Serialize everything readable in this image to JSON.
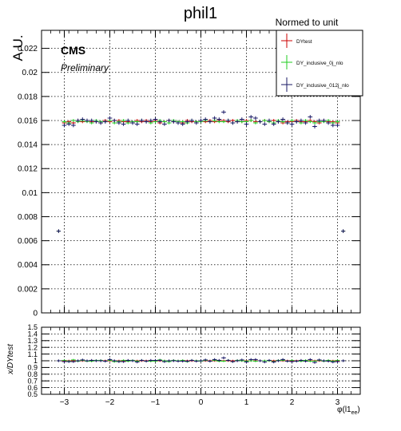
{
  "chart_data": {
    "type": "scatter",
    "title": "phil1",
    "header": "Normed to unit",
    "ylabel": "A.U.",
    "ratio_ylabel": "x/DYtest",
    "xlabel_main": "φ(l1",
    "xlabel_sub": "ee",
    "xlabel_close": ")",
    "cms_label": "CMS",
    "preliminary_label": "Preliminary",
    "grid": true,
    "legend_position": "top-right",
    "xlim": [
      -3.5,
      3.5
    ],
    "ylim": [
      0,
      0.0235
    ],
    "ratio_ylim": [
      0.5,
      1.5
    ],
    "x_ticks": [
      {
        "v": -3,
        "label": "−3"
      },
      {
        "v": -2,
        "label": "−2"
      },
      {
        "v": -1,
        "label": "−1"
      },
      {
        "v": 0,
        "label": "0"
      },
      {
        "v": 1,
        "label": "1"
      },
      {
        "v": 2,
        "label": "2"
      },
      {
        "v": 3,
        "label": "3"
      }
    ],
    "y_ticks": [
      {
        "v": 0,
        "label": "0"
      },
      {
        "v": 0.002,
        "label": "0.002"
      },
      {
        "v": 0.004,
        "label": "0.004"
      },
      {
        "v": 0.006,
        "label": "0.006"
      },
      {
        "v": 0.008,
        "label": "0.008"
      },
      {
        "v": 0.01,
        "label": "0.01"
      },
      {
        "v": 0.012,
        "label": "0.012"
      },
      {
        "v": 0.014,
        "label": "0.014"
      },
      {
        "v": 0.016,
        "label": "0.016"
      },
      {
        "v": 0.018,
        "label": "0.018"
      },
      {
        "v": 0.02,
        "label": "0.02"
      },
      {
        "v": 0.022,
        "label": "0.022"
      }
    ],
    "ratio_ticks": [
      {
        "v": 0.5,
        "label": "0.5"
      },
      {
        "v": 0.6,
        "label": "0.6"
      },
      {
        "v": 0.7,
        "label": "0.7"
      },
      {
        "v": 0.8,
        "label": "0.8"
      },
      {
        "v": 0.9,
        "label": "0.9"
      },
      {
        "v": 1.0,
        "label": "1"
      },
      {
        "v": 1.1,
        "label": "1.1"
      },
      {
        "v": 1.2,
        "label": "1.2"
      },
      {
        "v": 1.3,
        "label": "1.3"
      },
      {
        "v": 1.4,
        "label": "1.4"
      },
      {
        "v": 1.5,
        "label": "1.5"
      }
    ],
    "x": [
      -3.125,
      -3.0,
      -2.9,
      -2.8,
      -2.7,
      -2.6,
      -2.5,
      -2.4,
      -2.3,
      -2.2,
      -2.1,
      -2.0,
      -1.9,
      -1.8,
      -1.7,
      -1.6,
      -1.5,
      -1.4,
      -1.3,
      -1.2,
      -1.1,
      -1.0,
      -0.9,
      -0.8,
      -0.7,
      -0.6,
      -0.5,
      -0.4,
      -0.3,
      -0.2,
      -0.1,
      0.0,
      0.1,
      0.2,
      0.3,
      0.4,
      0.5,
      0.6,
      0.7,
      0.8,
      0.9,
      1.0,
      1.1,
      1.2,
      1.3,
      1.4,
      1.5,
      1.6,
      1.7,
      1.8,
      1.9,
      2.0,
      2.1,
      2.2,
      2.3,
      2.4,
      2.5,
      2.6,
      2.7,
      2.8,
      2.9,
      3.0,
      3.125
    ],
    "series": [
      {
        "name": "DYtest",
        "color": "#cc0000",
        "values": [
          0.0068,
          0.0158,
          0.0159,
          0.0158,
          0.016,
          0.0159,
          0.016,
          0.0159,
          0.0159,
          0.0158,
          0.016,
          0.0159,
          0.016,
          0.016,
          0.0159,
          0.0159,
          0.0158,
          0.016,
          0.0159,
          0.016,
          0.0159,
          0.016,
          0.0158,
          0.0159,
          0.016,
          0.0159,
          0.0159,
          0.0158,
          0.016,
          0.0159,
          0.0159,
          0.016,
          0.0159,
          0.016,
          0.0159,
          0.016,
          0.016,
          0.0159,
          0.016,
          0.0159,
          0.0159,
          0.016,
          0.016,
          0.0159,
          0.0159,
          0.016,
          0.0159,
          0.016,
          0.0159,
          0.0158,
          0.0159,
          0.0159,
          0.016,
          0.0159,
          0.0159,
          0.016,
          0.0159,
          0.0158,
          0.016,
          0.0159,
          0.0159,
          0.0158,
          0.0068
        ]
      },
      {
        "name": "DY_inclusive_0j_nlo",
        "color": "#22cc22",
        "values": [
          0.0068,
          0.0159,
          0.0158,
          0.016,
          0.0159,
          0.016,
          0.0159,
          0.0158,
          0.016,
          0.0159,
          0.0159,
          0.016,
          0.0158,
          0.0159,
          0.016,
          0.0158,
          0.0159,
          0.0159,
          0.016,
          0.0159,
          0.0158,
          0.0159,
          0.016,
          0.0159,
          0.0158,
          0.016,
          0.0159,
          0.0159,
          0.0158,
          0.016,
          0.0159,
          0.0159,
          0.016,
          0.0159,
          0.016,
          0.0159,
          0.0159,
          0.016,
          0.0158,
          0.016,
          0.0159,
          0.0159,
          0.016,
          0.0158,
          0.0159,
          0.016,
          0.0159,
          0.0158,
          0.016,
          0.0159,
          0.0158,
          0.016,
          0.0159,
          0.0158,
          0.016,
          0.0159,
          0.0158,
          0.0159,
          0.0159,
          0.016,
          0.0158,
          0.0159,
          0.0068
        ]
      },
      {
        "name": "DY_inclusive_012j_nlo",
        "color": "#1a1a66",
        "values": [
          0.0068,
          0.0156,
          0.0157,
          0.0156,
          0.016,
          0.0161,
          0.016,
          0.016,
          0.0159,
          0.0158,
          0.0159,
          0.0162,
          0.016,
          0.0158,
          0.0157,
          0.016,
          0.0158,
          0.0157,
          0.016,
          0.0159,
          0.016,
          0.0161,
          0.0159,
          0.0157,
          0.016,
          0.0159,
          0.0158,
          0.0157,
          0.0159,
          0.016,
          0.0158,
          0.016,
          0.0161,
          0.0159,
          0.0162,
          0.0161,
          0.0167,
          0.016,
          0.0158,
          0.0159,
          0.0161,
          0.0157,
          0.0163,
          0.0162,
          0.0159,
          0.0157,
          0.016,
          0.0157,
          0.0159,
          0.0161,
          0.0158,
          0.0157,
          0.0159,
          0.016,
          0.0158,
          0.0163,
          0.0155,
          0.016,
          0.016,
          0.0158,
          0.0156,
          0.0156,
          0.0068
        ]
      }
    ]
  }
}
